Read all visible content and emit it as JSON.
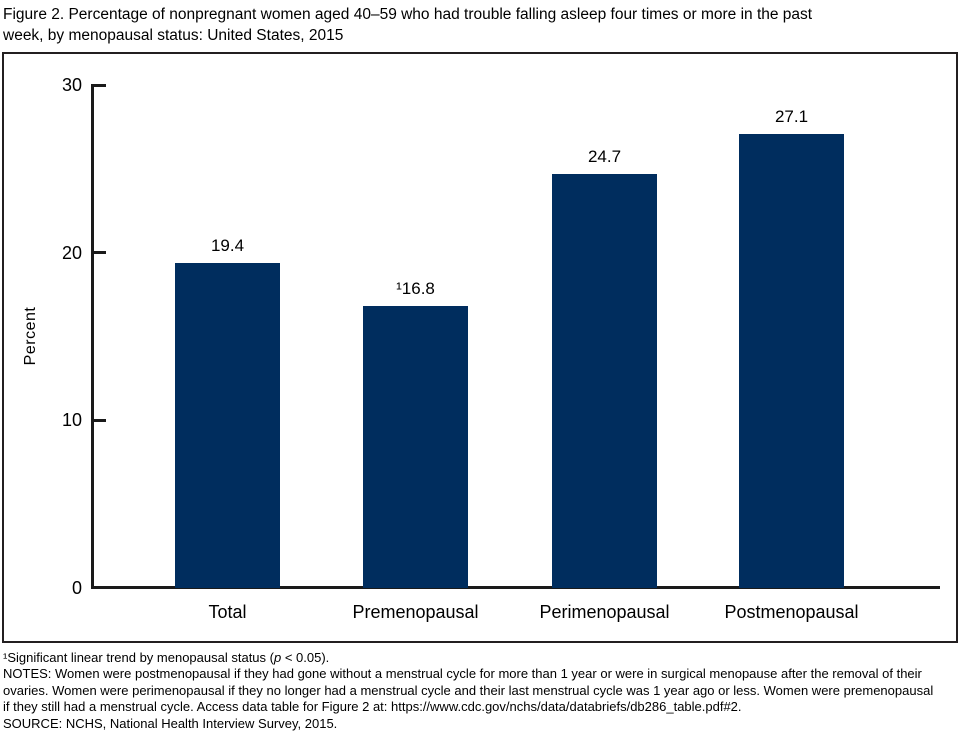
{
  "title_lines": [
    "Figure 2. Percentage of nonpregnant women aged 40–59 who had trouble falling asleep four times or more in the past",
    "week, by menopausal status: United States, 2015"
  ],
  "chart_data": {
    "type": "bar",
    "title": "Figure 2. Percentage of nonpregnant women aged 40–59 who had trouble falling asleep four times or more in the past week, by menopausal status: United States, 2015",
    "categories": [
      "Total",
      "Premenopausal",
      "Perimenopausal",
      "Postmenopausal"
    ],
    "values": [
      19.4,
      16.8,
      24.7,
      27.1
    ],
    "value_labels": [
      "19.4",
      "¹16.8",
      "24.7",
      "27.1"
    ],
    "ylabel": "Percent",
    "ylim": [
      0,
      30
    ],
    "yticks": [
      0,
      10,
      20,
      30
    ],
    "grid": "off",
    "legend": "none",
    "bar_color": "#002d5e",
    "axis_color": "#1a1a1a"
  },
  "footnotes": {
    "line1_pre": "¹Significant linear trend by menopausal status (",
    "line1_italic": "p",
    "line1_post": " < 0.05).",
    "notes_lines": [
      "NOTES: Women were postmenopausal if they had gone without a menstrual cycle for more than 1 year or were in surgical menopause after the removal of their",
      "ovaries. Women were perimenopausal if they no longer had a menstrual cycle and their last menstrual cycle was 1 year ago or less. Women were premenopausal",
      "if they still had a menstrual cycle. Access data table for Figure 2 at: https://www.cdc.gov/nchs/data/databriefs/db286_table.pdf#2."
    ],
    "source_line": "SOURCE: NCHS, National Health Interview Survey, 2015."
  }
}
